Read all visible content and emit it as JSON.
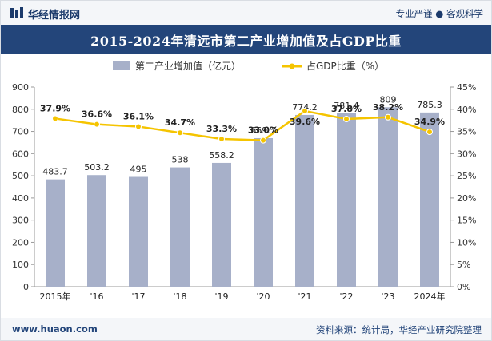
{
  "header": {
    "brand": "华经情报网",
    "slogan": "专业严谨 ● 客观科学"
  },
  "title": "2015-2024年清远市第二产业增加值及占GDP比重",
  "footer": {
    "url": "www.huaon.com",
    "source": "资料来源：统计局，华经产业研究院整理"
  },
  "colors": {
    "bar": "#a7b0c9",
    "line": "#f5c400",
    "title_bg": "#23457a",
    "brand_blue": "#1b3a6b"
  },
  "icons": {
    "logo": "huajing-logo-icon"
  },
  "chart_data": {
    "type": "bar",
    "categories": [
      "2015年",
      "'16",
      "'17",
      "'18",
      "'19",
      "'20",
      "'21",
      "'22",
      "'23",
      "2024年"
    ],
    "series": [
      {
        "name": "第二产业增加值（亿元）",
        "type": "bar",
        "axis": "left",
        "values": [
          483.7,
          503.2,
          495,
          538,
          558.2,
          669.7,
          774.2,
          781.4,
          809,
          785.3
        ],
        "labels": [
          "483.7",
          "503.2",
          "495",
          "538",
          "558.2",
          "669.7",
          "774.2",
          "781.4",
          "809",
          "785.3"
        ]
      },
      {
        "name": "占GDP比重（%）",
        "type": "line",
        "axis": "right",
        "values": [
          37.9,
          36.6,
          36.1,
          34.7,
          33.3,
          33.0,
          39.6,
          37.8,
          38.2,
          34.9
        ],
        "labels": [
          "37.9%",
          "36.6%",
          "36.1%",
          "34.7%",
          "33.3%",
          "33.0%",
          "39.6%",
          "37.8%",
          "38.2%",
          "34.9%"
        ]
      }
    ],
    "y_left": {
      "min": 0,
      "max": 900,
      "ticks": [
        "0",
        "100",
        "200",
        "300",
        "400",
        "500",
        "600",
        "700",
        "800",
        "900"
      ]
    },
    "y_right": {
      "min": 0,
      "max": 45,
      "ticks": [
        "0%",
        "5%",
        "10%",
        "15%",
        "20%",
        "25%",
        "30%",
        "35%",
        "40%",
        "45%"
      ]
    },
    "legend": "top-center",
    "grid": false
  }
}
